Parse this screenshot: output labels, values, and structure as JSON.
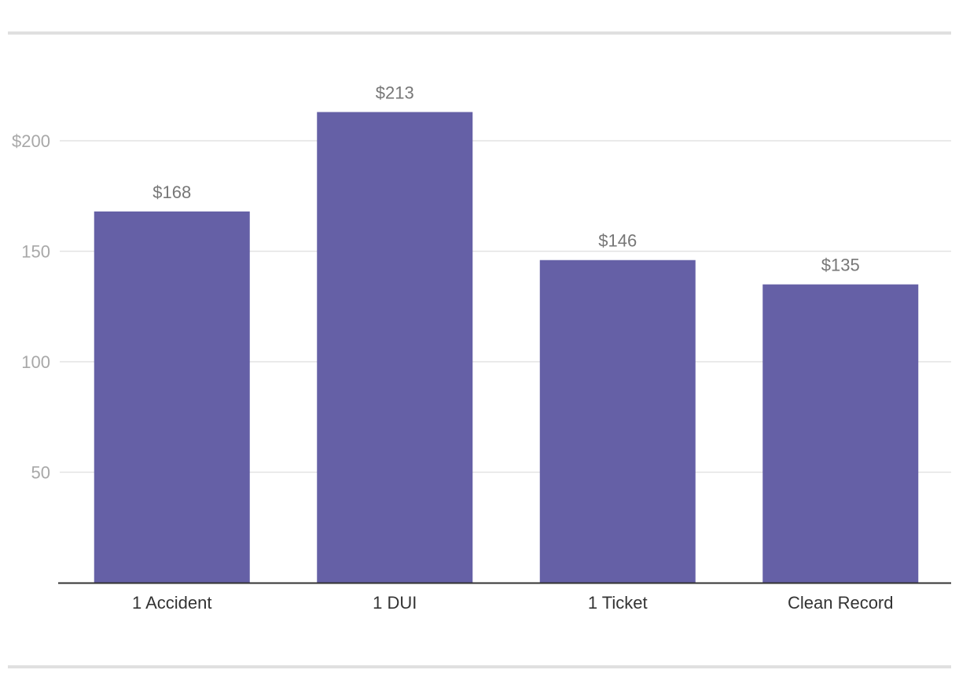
{
  "chart_data": {
    "type": "bar",
    "categories": [
      "1 Accident",
      "1 DUI",
      "1 Ticket",
      "Clean Record"
    ],
    "values": [
      168,
      213,
      146,
      135
    ],
    "data_labels": [
      "$168",
      "$213",
      "$146",
      "$135"
    ],
    "title": "",
    "xlabel": "",
    "ylabel": "",
    "ylim": [
      0,
      220
    ],
    "yticks": [
      50,
      100,
      150,
      200
    ],
    "ytick_labels": [
      "50",
      "100",
      "150",
      "$200"
    ],
    "grid": true,
    "legend": "none",
    "colors": {
      "bar": "#6560a6",
      "gridline": "#e3e3e3",
      "axis": "#333333",
      "rule": "#e0e0e0"
    }
  }
}
